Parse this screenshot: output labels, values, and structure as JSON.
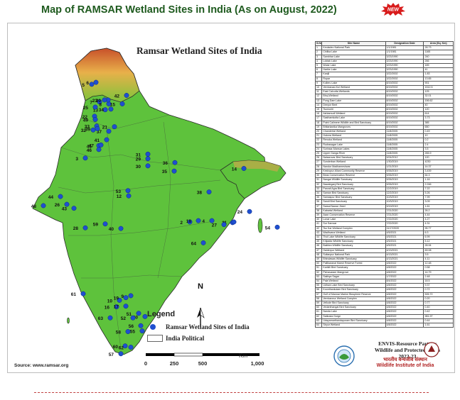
{
  "header": {
    "title": "Map of RAMSAR Wetland Sites in India (As on August, 2022)",
    "new_badge": "NEW"
  },
  "map": {
    "title": "Ramsar Wetland Sites of India",
    "north_label": "N",
    "site_color": "#1f4fd0",
    "labels": [
      "1",
      "2",
      "3",
      "4",
      "5",
      "6",
      "7",
      "8",
      "9",
      "10",
      "11",
      "12",
      "13",
      "14",
      "15",
      "16",
      "17",
      "18",
      "19",
      "20",
      "21",
      "22",
      "23",
      "24",
      "25",
      "26",
      "27",
      "28",
      "29",
      "30",
      "31",
      "32",
      "33",
      "34",
      "35",
      "36",
      "37",
      "38",
      "39",
      "40",
      "41",
      "42",
      "43",
      "44",
      "45",
      "46",
      "47",
      "48",
      "49",
      "50",
      "51",
      "52",
      "53",
      "54",
      "55",
      "56",
      "57",
      "58",
      "59",
      "60",
      "61",
      "62",
      "63",
      "64"
    ]
  },
  "legend": {
    "title": "Legend",
    "site_label": "Ramsar Wetland Sites of India",
    "boundary_label": "India Political"
  },
  "scale": {
    "unit": "Km",
    "ticks": [
      "0",
      "250",
      "500",
      "1,000"
    ]
  },
  "source": "Source: www.ramsar.org",
  "table": {
    "headers": [
      "S.No",
      "Site Name",
      "Designation Date",
      "Area (Sq. Km)"
    ],
    "rows": [
      [
        "1",
        "Keoladeo National Park",
        "1/1/1981",
        "28.73"
      ],
      [
        "2",
        "Chilika Lake",
        "1/1/1981",
        "1165"
      ],
      [
        "3",
        "Sambhar Lake",
        "3/23/1990",
        "240"
      ],
      [
        "4",
        "Loktak Lake",
        "3/23/1990",
        "266"
      ],
      [
        "5",
        "Wular Lake",
        "3/23/1990",
        "189"
      ],
      [
        "6",
        "Harike Lake",
        "3/23/1990",
        "41"
      ],
      [
        "7",
        "Kanjli",
        "3/22/2002",
        "1.83"
      ],
      [
        "8",
        "Ropar",
        "3/22/2002",
        "13.65"
      ],
      [
        "9",
        "Kolleru Lake",
        "8/19/2002",
        "901"
      ],
      [
        "10",
        "Vembanad-Kol Wetland",
        "8/19/2002",
        "1512.5"
      ],
      [
        "11",
        "East Calcutta Wetlands",
        "8/19/2002",
        "125"
      ],
      [
        "12",
        "Bhoj Wetland",
        "8/19/2002",
        "32.01"
      ],
      [
        "13",
        "Pong Dam Lake",
        "8/19/2002",
        "156.62"
      ],
      [
        "14",
        "Deepor Beel",
        "8/19/2002",
        "40"
      ],
      [
        "15",
        "Tsomoriri",
        "8/19/2002",
        "120"
      ],
      [
        "16",
        "Ashtamudi Wetland",
        "8/19/2002",
        "614"
      ],
      [
        "17",
        "Sasthamkotta Lake",
        "8/19/2002",
        "3.73"
      ],
      [
        "18",
        "Point Calimere Wildlife and Bird Sanctuary",
        "8/19/2002",
        "385"
      ],
      [
        "19",
        "Bhitarkanika Mangroves",
        "8/19/2002",
        "650"
      ],
      [
        "20",
        "Chandertal Wetland",
        "11/8/2005",
        "0.49"
      ],
      [
        "21",
        "Hokera Wetland",
        "11/8/2005",
        "10"
      ],
      [
        "22",
        "Renuka Wetland",
        "11/8/2005",
        "0.2"
      ],
      [
        "23",
        "Rudrasagar Lake",
        "11/8/2005",
        "2.4"
      ],
      [
        "24",
        "Surinsar-Mansar Lakes",
        "11/8/2005",
        "3.5"
      ],
      [
        "25",
        "Upper Ganga River",
        "11/8/2005",
        "265.9"
      ],
      [
        "26",
        "Nalsarovar Bird Sanctuary",
        "9/24/2012",
        "120"
      ],
      [
        "27",
        "Sunderban Wetland",
        "1/30/2019",
        "4230"
      ],
      [
        "28",
        "Nandur Madhameshwar",
        "1/21/2019",
        "14.37"
      ],
      [
        "29",
        "Keshopur-Miani Community Reserve",
        "9/26/2019",
        "3.439"
      ],
      [
        "30",
        "Beas Conservation Reserve",
        "9/26/2019",
        "64.3"
      ],
      [
        "31",
        "Nangal Wildlife Sanctuary",
        "9/26/2019",
        "1.16"
      ],
      [
        "32",
        "Nawabganj Bird Sanctuary",
        "9/26/2019",
        "2.246"
      ],
      [
        "33",
        "Parvati Agra Bird Sanctuary",
        "12/2/2019",
        "7.22"
      ],
      [
        "34",
        "Saman Bird Sanctuary",
        "12/2/2019",
        "5.26"
      ],
      [
        "35",
        "Samaspur Bird Sanctuary",
        "10/3/2019",
        "7.99"
      ],
      [
        "36",
        "Sandi Bird Sanctuary",
        "10/3/2019",
        "3.09"
      ],
      [
        "37",
        "Sarsai Nawar Jheel",
        "9/19/2019",
        "1.61"
      ],
      [
        "38",
        "Kabartal Wetland",
        "7/21/2020",
        "26.2"
      ],
      [
        "39",
        "Asan Conservation Reserve",
        "7/21/2020",
        "4.44"
      ],
      [
        "40",
        "Lonar Lake",
        "7/22/2020",
        "4.27"
      ],
      [
        "41",
        "Sur Sarovar",
        "7/22/2020",
        "4.31"
      ],
      [
        "42",
        "Tso Kar Wetland Complex",
        "11/17/2020",
        "95.77"
      ],
      [
        "43",
        "Wadhvana Wetland",
        "4/5/2021",
        "6.3"
      ],
      [
        "44",
        "Thol Lake Wildlife Sanctuary",
        "4/5/2021",
        "6.99"
      ],
      [
        "45",
        "Khijadia Wildlife Sanctuary",
        "4/5/2021",
        "5.12"
      ],
      [
        "46",
        "Bakhira Wildlife Sanctuary",
        "4/5/2021",
        "28.94"
      ],
      [
        "47",
        "Haiderpur Wetland",
        "4/13/2021",
        "69.08"
      ],
      [
        "48",
        "Sultanpur National Park",
        "4/13/2021",
        "3.5"
      ],
      [
        "49",
        "Bhindawas Wildlife Sanctuary",
        "4/13/2021",
        "4.11"
      ],
      [
        "50",
        "Pallikaranai Marsh Reserve Forest",
        "4/8/2022",
        "12.48"
      ],
      [
        "51",
        "Karikili Bird Sanctuary",
        "4/8/2022",
        "0.58"
      ],
      [
        "52",
        "Pichavaram Mangrove",
        "4/8/2022",
        "14.79"
      ],
      [
        "53",
        "Sakhya Sagar",
        "1/7/2022",
        "2.48"
      ],
      [
        "54",
        "Pala Wetland",
        "8/4/2022",
        "18.5"
      ],
      [
        "55",
        "Udhwa Lake Bird Sanctuary",
        "4/8/2022",
        "9.37"
      ],
      [
        "56",
        "Koonthankulam Bird Sanctuary",
        "4/8/2022",
        "0.72"
      ],
      [
        "57",
        "Gulf of Mannar Marine Biosphere Reserve",
        "4/8/2022",
        "526.72"
      ],
      [
        "58",
        "Vembannur Wetland Complex",
        "4/8/2022",
        "0.20"
      ],
      [
        "59",
        "Vellode Bird Sanctuary",
        "4/8/2022",
        "0.77"
      ],
      [
        "60",
        "Vedanthangal Bird Sanctuary",
        "4/8/2022",
        "0.40"
      ],
      [
        "61",
        "Nanda Lake",
        "4/8/2022",
        "0.42"
      ],
      [
        "62",
        "Satkosia Gorge",
        "4/8/2022",
        "981.97"
      ],
      [
        "63",
        "Udayamarthandapuram Bird Sanctuary",
        "4/8/2022",
        "0.44"
      ],
      [
        "64",
        "Sirpur Wetland",
        "4/8/2022",
        "1.61"
      ]
    ]
  },
  "credit": {
    "line1": "ENVIS-Resource Partner",
    "line2": "Wildlife and Protected Areas",
    "line3": "2022-23",
    "hindi": "भारतीय वन्यजीव संस्थान",
    "institute": "Wildlife Institute of India"
  }
}
